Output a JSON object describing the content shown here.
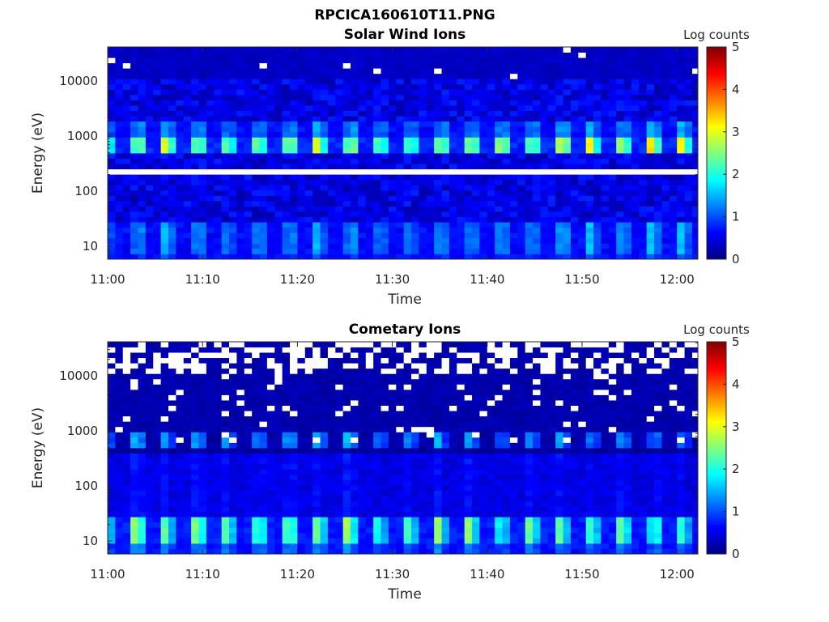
{
  "figure_title": "RPCICA160610T11.PNG",
  "chart_data": [
    {
      "type": "heatmap",
      "title": "Solar Wind Ions",
      "xlabel": "Time",
      "ylabel": "Energy (eV)",
      "x_ticks": [
        "11:00",
        "11:10",
        "11:20",
        "11:30",
        "11:40",
        "11:50",
        "12:00"
      ],
      "x_tick_minutes": [
        0,
        10,
        20,
        30,
        40,
        50,
        60
      ],
      "xlim_minutes": [
        0,
        62.2
      ],
      "y_scale": "log",
      "y_ticks": [
        "10",
        "100",
        "1000",
        "10000"
      ],
      "y_tick_values": [
        10,
        100,
        1000,
        10000
      ],
      "ylim": [
        5.8,
        41700
      ],
      "time_bin_minutes": 0.8,
      "energy_bins": 40,
      "colorbar": {
        "label": "Log counts",
        "ticks": [
          "0",
          "1",
          "2",
          "3",
          "4",
          "5"
        ],
        "range": [
          0,
          5
        ],
        "colormap": "jet"
      },
      "model": {
        "seed": 7,
        "period_bins": 4,
        "bright_phases": [
          3,
          0
        ],
        "background_log_counts": 0.5,
        "background_noise": 0.3,
        "bands": [
          {
            "elow": 450,
            "ehigh": 1000,
            "peak": 2.7,
            "adjacent": 2.0,
            "off": 0.8
          },
          {
            "elow": 1000,
            "ehigh": 1700,
            "peak": 1.3,
            "adjacent": 1.1,
            "off": 0.6
          },
          {
            "elow": 8,
            "ehigh": 30,
            "peak": 1.35,
            "adjacent": 1.05,
            "off": 0.6
          },
          {
            "elow": 5.8,
            "ehigh": 8,
            "peak": 0.9,
            "adjacent": 0.8,
            "off": 0.65
          }
        ],
        "high_energy_dim_above": 10000,
        "high_energy_log_counts": 0.25,
        "nan_row_energy": 218,
        "nan_prob_above": 12000,
        "nan_prob": 0.02
      }
    },
    {
      "type": "heatmap",
      "title": "Cometary Ions",
      "xlabel": "Time",
      "ylabel": "Energy (eV)",
      "x_ticks": [
        "11:00",
        "11:10",
        "11:20",
        "11:30",
        "11:40",
        "11:50",
        "12:00"
      ],
      "x_tick_minutes": [
        0,
        10,
        20,
        30,
        40,
        50,
        60
      ],
      "xlim_minutes": [
        0,
        62.2
      ],
      "y_scale": "log",
      "y_ticks": [
        "10",
        "100",
        "1000",
        "10000"
      ],
      "y_tick_values": [
        10,
        100,
        1000,
        10000
      ],
      "ylim": [
        5.8,
        41700
      ],
      "time_bin_minutes": 0.8,
      "energy_bins": 40,
      "colorbar": {
        "label": "Log counts",
        "ticks": [
          "0",
          "1",
          "2",
          "3",
          "4",
          "5"
        ],
        "range": [
          0,
          5
        ],
        "colormap": "jet"
      },
      "model": {
        "seed": 19,
        "period_bins": 4,
        "bright_phases": [
          3,
          0
        ],
        "background_log_counts": 0.15,
        "background_noise": 0.1,
        "bands": [
          {
            "elow": 450,
            "ehigh": 900,
            "peak": 1.25,
            "adjacent": 1.0,
            "off": 0.2
          },
          {
            "elow": 30,
            "ehigh": 400,
            "peak": 0.6,
            "adjacent": 0.55,
            "off": 0.5
          },
          {
            "elow": 10,
            "ehigh": 30,
            "peak": 2.2,
            "adjacent": 1.7,
            "off": 0.75
          },
          {
            "elow": 5.8,
            "ehigh": 10,
            "peak": 1.1,
            "adjacent": 1.0,
            "off": 0.7
          }
        ],
        "high_energy_dim_above": 1000,
        "high_energy_log_counts": 0.15,
        "nan_row_energy": null,
        "nan_prob_above": 12000,
        "nan_prob": 0.45,
        "nan_prob_mid": 0.07,
        "nan_mid_above": 600
      }
    }
  ]
}
